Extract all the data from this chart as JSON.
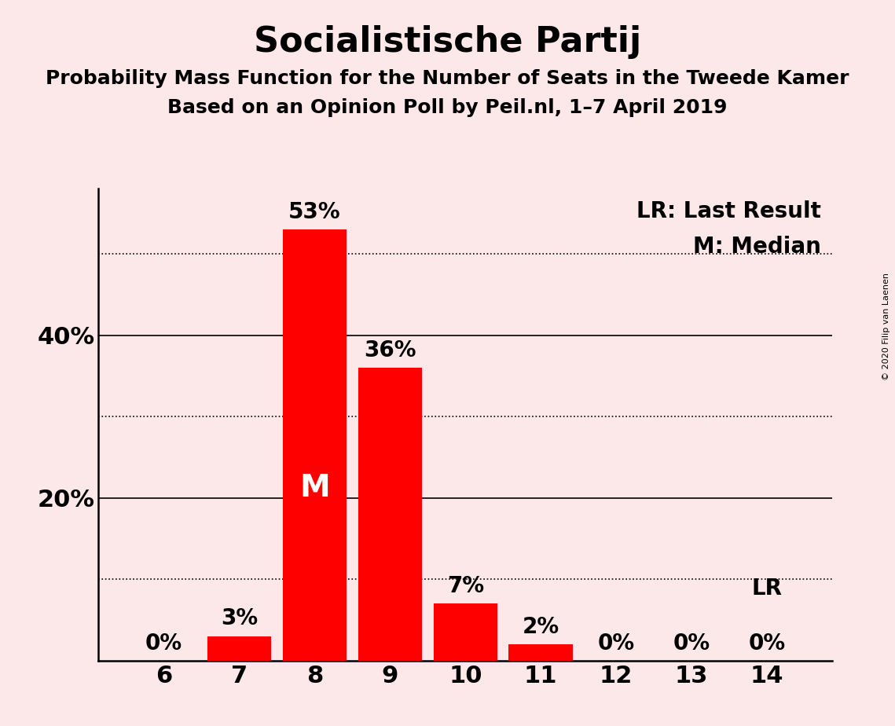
{
  "title": "Socialistische Partij",
  "subtitle1": "Probability Mass Function for the Number of Seats in the Tweede Kamer",
  "subtitle2": "Based on an Opinion Poll by Peil.nl, 1–7 April 2019",
  "copyright": "© 2020 Filip van Laenen",
  "categories": [
    6,
    7,
    8,
    9,
    10,
    11,
    12,
    13,
    14
  ],
  "values": [
    0,
    3,
    53,
    36,
    7,
    2,
    0,
    0,
    0
  ],
  "bar_color": "#ff0000",
  "background_color": "#fce8e8",
  "median_seat": 8,
  "last_result_seat": 14,
  "median_label": "M",
  "lr_label": "LR",
  "legend_lr": "LR: Last Result",
  "legend_m": "M: Median",
  "ytick_vals": [
    20,
    40
  ],
  "ytick_labels": [
    "20%",
    "40%"
  ],
  "solid_lines": [
    20,
    40
  ],
  "dotted_lines": [
    10,
    30,
    50
  ],
  "ylim": [
    0,
    58
  ],
  "title_fontsize": 32,
  "subtitle_fontsize": 18,
  "bar_label_fontsize": 20,
  "axis_label_fontsize": 22,
  "legend_fontsize": 20,
  "median_label_fontsize": 28
}
